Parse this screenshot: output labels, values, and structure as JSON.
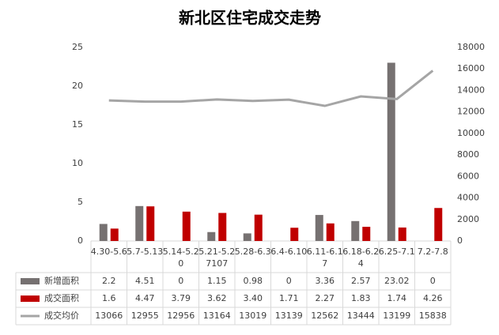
{
  "chart_data": {
    "type": "bar",
    "title": "新北区住宅成交走势",
    "categories": [
      "4.30-5.6",
      "5.7-5.13",
      "5.14-5.20",
      "5.21-5.27107",
      "5.28-6.3",
      "6.4-6.10",
      "6.11-6.17",
      "6.18-6.24",
      "6.25-7.1",
      "7.2-7.8"
    ],
    "series": [
      {
        "name": "新增面积",
        "type": "bar",
        "color": "#767171",
        "values": [
          2.2,
          4.51,
          0,
          1.15,
          0.98,
          0,
          3.36,
          2.57,
          23.02,
          0
        ]
      },
      {
        "name": "成交面积",
        "type": "bar",
        "color": "#c00000",
        "values": [
          1.6,
          4.47,
          3.79,
          3.62,
          3.4,
          1.71,
          2.27,
          1.83,
          1.74,
          4.26
        ],
        "value_labels": [
          "1.6",
          "4.47",
          "3.79",
          "3.62",
          "3.40",
          "1.71",
          "2.27",
          "1.83",
          "1.74",
          "4.26"
        ]
      },
      {
        "name": "成交均价",
        "type": "line",
        "axis": "y2",
        "color": "#a5a5a5",
        "values": [
          13066,
          12955,
          12956,
          13164,
          13019,
          13139,
          12562,
          13444,
          13199,
          15838
        ]
      }
    ],
    "ylim": [
      0,
      25
    ],
    "yticks": [
      0,
      5,
      10,
      15,
      20,
      25
    ],
    "y2lim": [
      0,
      18000
    ],
    "y2ticks": [
      0,
      2000,
      4000,
      6000,
      8000,
      10000,
      12000,
      14000,
      16000,
      18000
    ],
    "grid": false
  }
}
